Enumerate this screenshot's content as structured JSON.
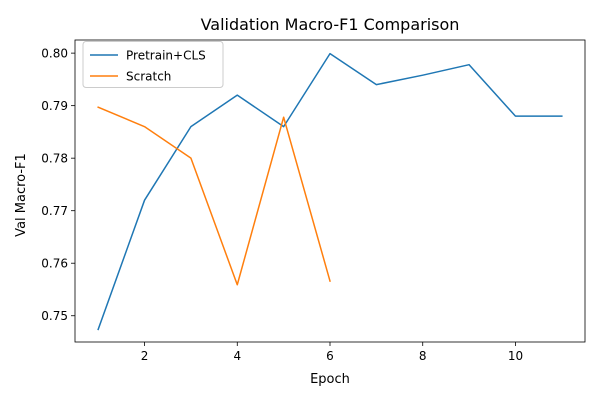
{
  "chart_data": {
    "type": "line",
    "title": "Validation Macro-F1 Comparison",
    "xlabel": "Epoch",
    "ylabel": "Val Macro-F1",
    "xlim": [
      0.5,
      11.5
    ],
    "ylim": [
      0.745,
      0.8025
    ],
    "xticks": [
      2,
      4,
      6,
      8,
      10
    ],
    "yticks": [
      0.75,
      0.76,
      0.77,
      0.78,
      0.79,
      0.8
    ],
    "xtick_labels": [
      "2",
      "4",
      "6",
      "8",
      "10"
    ],
    "ytick_labels": [
      "0.75",
      "0.76",
      "0.77",
      "0.78",
      "0.79",
      "0.80"
    ],
    "grid": false,
    "legend_position": "top-left",
    "series": [
      {
        "name": "Pretrain+CLS",
        "color": "#1f77b4",
        "x": [
          1,
          2,
          3,
          4,
          5,
          6,
          7,
          8,
          9,
          10,
          11
        ],
        "values": [
          0.7474,
          0.772,
          0.786,
          0.792,
          0.786,
          0.7999,
          0.794,
          0.7958,
          0.7978,
          0.788,
          0.788
        ]
      },
      {
        "name": "Scratch",
        "color": "#ff7f0e",
        "x": [
          1,
          2,
          3,
          4,
          5,
          6
        ],
        "values": [
          0.7897,
          0.786,
          0.78,
          0.7559,
          0.7878,
          0.7566
        ]
      }
    ]
  }
}
